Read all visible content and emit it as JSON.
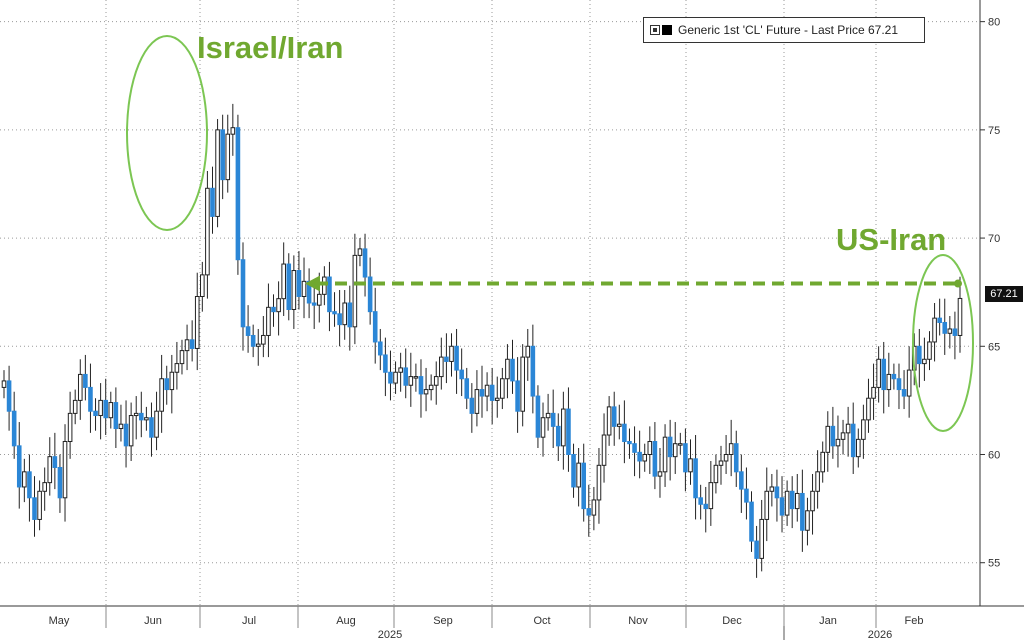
{
  "legend": {
    "label": "Generic 1st 'CL' Future - Last Price 67.21"
  },
  "annotations": {
    "israel_iran": "Israel/Iran",
    "us_iran": "US-Iran"
  },
  "last_price_tag": "67.21",
  "colors": {
    "up_candle": "#1a1a1a",
    "down_candle": "#2b86d6",
    "annotation": "#70a830",
    "grid": "#9a9a9a"
  },
  "chart_data": {
    "type": "candlestick",
    "title": "",
    "ylim": [
      53,
      81
    ],
    "y_ticks": [
      55,
      60,
      65,
      70,
      75,
      80
    ],
    "x_month_labels": [
      "May",
      "Jun",
      "Jul",
      "Aug",
      "Sep",
      "Oct",
      "Nov",
      "Dec",
      "Jan",
      "Feb"
    ],
    "x_year_labels": [
      "2025",
      "2026"
    ],
    "dashed_level": 67.9,
    "series": [
      {
        "name": "Generic 1st 'CL' Future - Last Price",
        "last_price": 67.21,
        "closes": [
          63.4,
          62.0,
          60.4,
          58.5,
          59.2,
          58.0,
          57.0,
          58.3,
          58.7,
          59.9,
          59.4,
          58.0,
          60.6,
          61.9,
          62.5,
          63.7,
          63.1,
          62.0,
          61.8,
          62.5,
          61.7,
          62.4,
          61.2,
          61.4,
          60.4,
          61.8,
          61.9,
          61.6,
          61.7,
          60.8,
          62.0,
          63.5,
          63.0,
          63.8,
          64.2,
          64.8,
          65.3,
          64.9,
          67.3,
          68.3,
          72.3,
          71.0,
          75.0,
          72.7,
          74.8,
          75.1,
          69.0,
          65.9,
          65.5,
          65.0,
          65.1,
          65.5,
          66.8,
          66.6,
          67.2,
          68.8,
          66.7,
          68.5,
          67.3,
          68.0,
          67.0,
          66.9,
          67.4,
          68.2,
          66.6,
          66.5,
          66.0,
          67.0,
          65.9,
          69.2,
          69.5,
          68.2,
          66.6,
          65.2,
          64.6,
          63.8,
          63.3,
          63.8,
          64.0,
          63.2,
          63.6,
          63.6,
          62.8,
          63.0,
          63.2,
          63.6,
          64.5,
          64.3,
          65.0,
          63.9,
          63.5,
          62.6,
          61.9,
          63.0,
          62.7,
          63.2,
          62.5,
          62.6,
          63.5,
          64.4,
          63.4,
          62.0,
          64.5,
          65.0,
          62.7,
          60.8,
          61.7,
          61.9,
          61.3,
          60.4,
          62.1,
          60.0,
          58.5,
          59.6,
          57.5,
          57.2,
          57.9,
          59.5,
          60.9,
          62.2,
          61.3,
          61.4,
          60.6,
          60.5,
          60.1,
          59.7,
          60.0,
          60.6,
          59.0,
          59.2,
          60.8,
          59.9,
          60.5,
          60.5,
          59.2,
          59.8,
          58.0,
          57.7,
          57.5,
          58.7,
          59.5,
          59.7,
          60.0,
          60.5,
          59.2,
          58.4,
          57.8,
          56.0,
          55.2,
          57.0,
          58.3,
          58.5,
          58.0,
          57.2,
          58.3,
          57.5,
          58.2,
          56.5,
          57.4,
          58.3,
          59.2,
          60.1,
          61.3,
          60.4,
          60.7,
          61.0,
          61.4,
          59.9,
          60.7,
          61.6,
          62.6,
          63.1,
          64.4,
          63.0,
          63.7,
          63.5,
          63.0,
          62.7,
          63.9,
          65.0,
          64.2,
          64.4,
          65.2,
          66.3,
          66.1,
          65.6,
          65.8,
          65.5,
          67.21
        ]
      }
    ]
  }
}
